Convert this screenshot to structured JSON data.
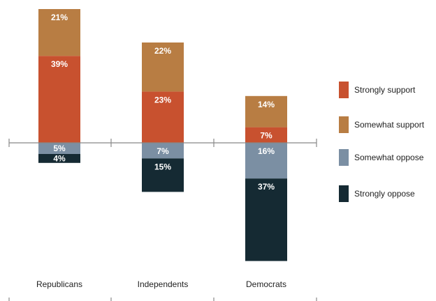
{
  "chart_data": {
    "type": "bar",
    "stacked": true,
    "diverging": true,
    "categories": [
      "Republicans",
      "Independents",
      "Democrats"
    ],
    "series": [
      {
        "name": "Strongly support",
        "color": "#c8512f",
        "direction": "up",
        "values": [
          39,
          23,
          7
        ],
        "labels": [
          "39%",
          "23%",
          "7%"
        ]
      },
      {
        "name": "Somewhat support",
        "color": "#b87d43",
        "direction": "up",
        "values": [
          21,
          22,
          14
        ],
        "labels": [
          "21%",
          "22%",
          "14%"
        ]
      },
      {
        "name": "Somewhat oppose",
        "color": "#7b8fa3",
        "direction": "down",
        "values": [
          5,
          7,
          16
        ],
        "labels": [
          "5%",
          "7%",
          "16%"
        ]
      },
      {
        "name": "Strongly oppose",
        "color": "#152a33",
        "direction": "down",
        "values": [
          4,
          15,
          37
        ],
        "labels": [
          "4%",
          "15%",
          "37%"
        ]
      }
    ],
    "legend_order": [
      "Strongly support",
      "Somewhat support",
      "Somewhat oppose",
      "Strongly oppose"
    ],
    "legend_position": "right",
    "baseline": 0,
    "grid": false
  }
}
